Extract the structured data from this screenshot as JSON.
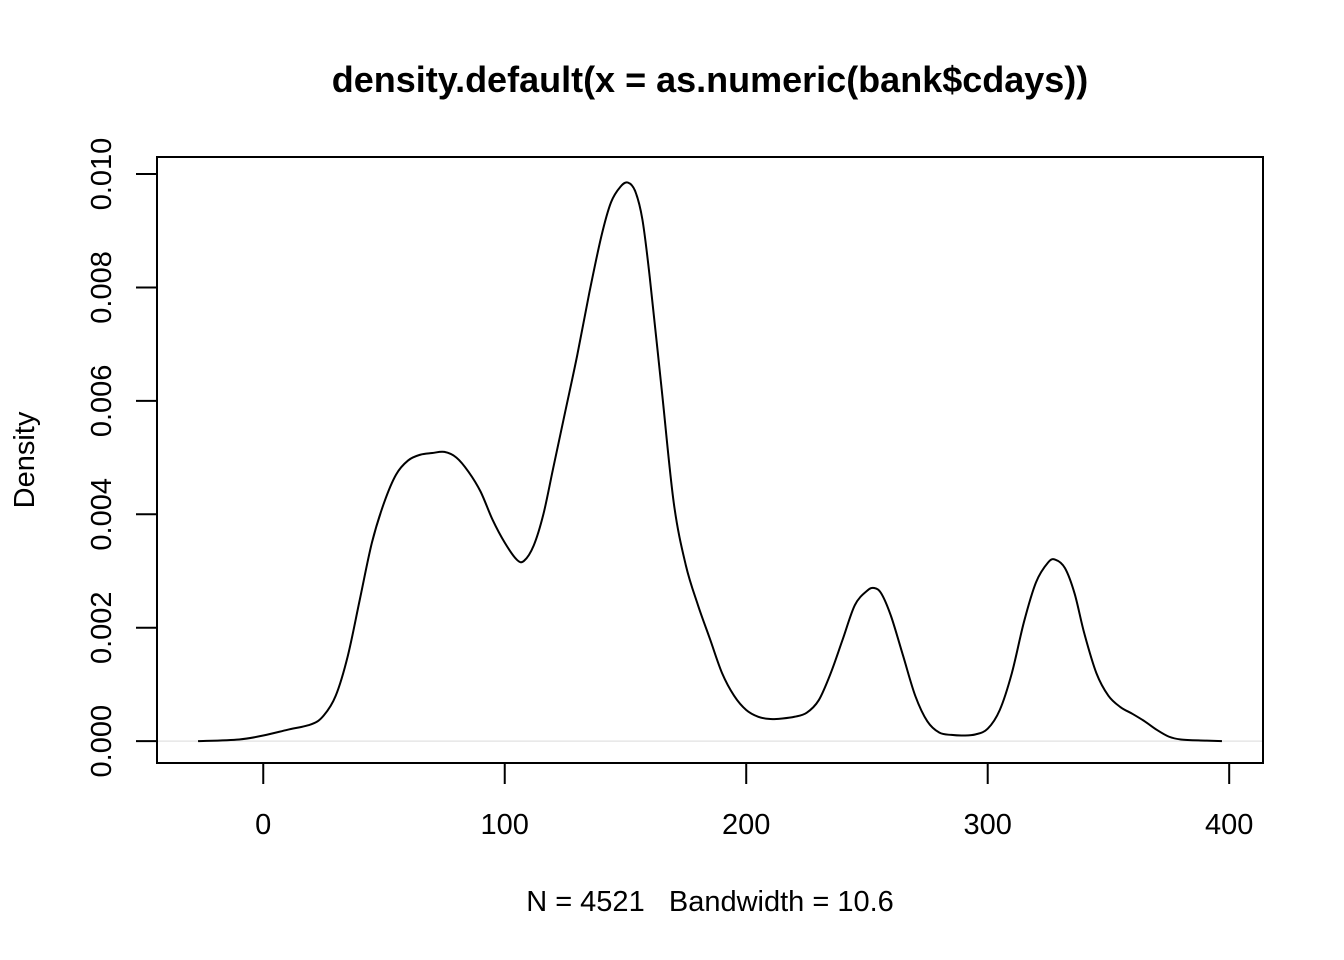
{
  "chart_data": {
    "type": "line",
    "title": "density.default(x = as.numeric(bank$cdays))",
    "xlabel": "N = 4521   Bandwidth = 10.6",
    "ylabel": "Density",
    "xlim": [
      -44,
      414
    ],
    "ylim": [
      -0.000385,
      0.0103
    ],
    "x_ticks": [
      0,
      100,
      200,
      300,
      400
    ],
    "x_tick_labels": [
      "0",
      "100",
      "200",
      "300",
      "400"
    ],
    "y_ticks": [
      0,
      0.002,
      0.004,
      0.006,
      0.008,
      0.01
    ],
    "y_tick_labels": [
      "0.000",
      "0.002",
      "0.004",
      "0.006",
      "0.008",
      "0.010"
    ],
    "grid": false,
    "legend": "none",
    "series": [
      {
        "x": [
          -27,
          -10,
          0,
          10,
          20,
          25,
          30,
          35,
          40,
          45,
          50,
          55,
          60,
          65,
          70,
          75,
          80,
          85,
          90,
          95,
          100,
          105,
          108,
          112,
          116,
          120,
          125,
          130,
          135,
          140,
          144,
          148,
          151,
          154,
          157,
          160,
          165,
          170,
          175,
          180,
          185,
          190,
          195,
          200,
          205,
          210,
          215,
          220,
          225,
          230,
          235,
          240,
          245,
          250,
          253,
          256,
          260,
          265,
          270,
          275,
          280,
          285,
          290,
          295,
          300,
          305,
          310,
          315,
          320,
          325,
          328,
          332,
          336,
          340,
          345,
          350,
          355,
          360,
          365,
          370,
          375,
          380,
          390,
          397
        ],
        "y": [
          0.0,
          3e-05,
          0.0001,
          0.0002,
          0.0003,
          0.00045,
          0.0008,
          0.0015,
          0.0025,
          0.0035,
          0.0042,
          0.0047,
          0.00495,
          0.00505,
          0.00508,
          0.0051,
          0.005,
          0.00475,
          0.0044,
          0.0039,
          0.0035,
          0.0032,
          0.00318,
          0.00345,
          0.004,
          0.0048,
          0.0058,
          0.0068,
          0.0079,
          0.0089,
          0.0095,
          0.00978,
          0.00985,
          0.0097,
          0.0092,
          0.0082,
          0.0062,
          0.0042,
          0.0031,
          0.0024,
          0.0018,
          0.0012,
          0.0008,
          0.00055,
          0.00043,
          0.00039,
          0.0004,
          0.00043,
          0.0005,
          0.00072,
          0.0012,
          0.0018,
          0.0024,
          0.00265,
          0.0027,
          0.0026,
          0.0022,
          0.0015,
          0.0008,
          0.00035,
          0.00015,
          0.00011,
          0.0001,
          0.00012,
          0.00022,
          0.00055,
          0.0012,
          0.0021,
          0.0028,
          0.00315,
          0.0032,
          0.00305,
          0.0026,
          0.0019,
          0.0012,
          0.0008,
          0.0006,
          0.00048,
          0.00035,
          0.0002,
          8e-05,
          3e-05,
          1e-05,
          0.0
        ]
      }
    ]
  }
}
